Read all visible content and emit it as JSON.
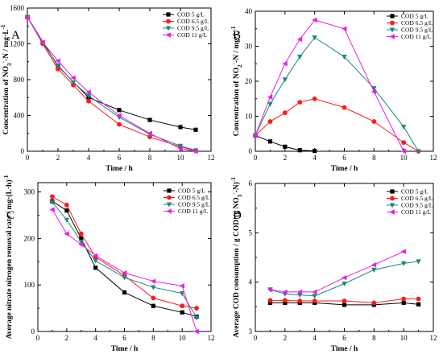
{
  "colors": {
    "COD 5 g/L": "#000000",
    "COD 6.5 g/L": "#ff1a1a",
    "COD 9.5 g/L": "#1a8a7a",
    "COD 11 g/L": "#e81ee8"
  },
  "markers": {
    "COD 5 g/L": "square",
    "COD 6.5 g/L": "circle",
    "COD 9.5 g/L": "triangle-down",
    "COD 11 g/L": "triangle-left"
  },
  "chart_data": [
    {
      "id": "A",
      "type": "line",
      "panel_label": "A",
      "xlabel": "Time / h",
      "ylabel_parts": [
        "Concentration of NO",
        "3",
        "-",
        "-N / mg·L",
        "-1"
      ],
      "xlim": [
        0,
        12
      ],
      "ylim": [
        0,
        1600
      ],
      "xticks": [
        0,
        2,
        4,
        6,
        8,
        10,
        12
      ],
      "yticks": [
        0,
        400,
        800,
        1200,
        1600
      ],
      "legend": "top-right",
      "series": [
        {
          "name": "COD  5 g/L",
          "key": "COD 5 g/L",
          "x": [
            0,
            2,
            4,
            6,
            8,
            10,
            11
          ],
          "y": [
            1500,
            950,
            600,
            460,
            350,
            270,
            240
          ]
        },
        {
          "name": "COD  6.5 g/L",
          "key": "COD 6.5 g/L",
          "x": [
            0,
            1,
            2,
            3,
            4,
            6,
            8,
            10,
            11
          ],
          "y": [
            1500,
            1200,
            920,
            740,
            560,
            300,
            160,
            50,
            5
          ]
        },
        {
          "name": "COD  9.5 g/L",
          "key": "COD 9.5 g/L",
          "x": [
            0,
            1,
            2,
            3,
            4,
            6,
            8,
            10,
            11
          ],
          "y": [
            1500,
            1210,
            960,
            770,
            620,
            380,
            190,
            60,
            10
          ]
        },
        {
          "name": "COD  11 g/L",
          "key": "COD 11 g/L",
          "x": [
            0,
            1,
            2,
            3,
            4,
            6,
            8,
            10,
            11
          ],
          "y": [
            1500,
            1220,
            1010,
            820,
            660,
            400,
            200,
            30,
            0
          ]
        }
      ]
    },
    {
      "id": "B",
      "type": "line",
      "panel_label": "B",
      "xlabel": "Time / h",
      "ylabel_parts": [
        "Concentration of NO",
        "2",
        "-",
        "-N / mg·L",
        "-1"
      ],
      "xlim": [
        0,
        12
      ],
      "ylim": [
        0,
        40
      ],
      "xticks": [
        0,
        2,
        4,
        6,
        8,
        10,
        12
      ],
      "yticks": [
        0,
        10,
        20,
        30,
        40
      ],
      "legend": "top-right",
      "series": [
        {
          "name": "COD  5 g/L",
          "key": "COD 5 g/L",
          "x": [
            0,
            1,
            2,
            3,
            4
          ],
          "y": [
            4.5,
            2.8,
            1.3,
            0.3,
            0.1
          ]
        },
        {
          "name": "COD  6.5 g/L",
          "key": "COD 6.5 g/L",
          "x": [
            0,
            1,
            2,
            3,
            4,
            6,
            8,
            10,
            11
          ],
          "y": [
            4.5,
            8.5,
            11,
            14,
            15,
            12.5,
            8.5,
            2.5,
            0
          ]
        },
        {
          "name": "COD  9.5 g/L",
          "key": "COD 9.5 g/L",
          "x": [
            0,
            1,
            2,
            3,
            4,
            6,
            8,
            10,
            11
          ],
          "y": [
            4.5,
            13.5,
            20.5,
            27,
            32.5,
            27,
            18,
            7,
            0
          ]
        },
        {
          "name": "COD  11 g/L",
          "key": "COD 11 g/L",
          "x": [
            0,
            1,
            2,
            3,
            4,
            6,
            8,
            10
          ],
          "y": [
            4.5,
            15.5,
            25,
            32,
            37.5,
            35,
            17,
            0
          ]
        }
      ]
    },
    {
      "id": "C",
      "type": "line",
      "panel_label": "C",
      "xlabel": "Time / h",
      "ylabel_parts": [
        "Average nitrate nitrogen removal rate / mg·(L·h)",
        "-1"
      ],
      "xlim": [
        0,
        12
      ],
      "ylim": [
        0,
        320
      ],
      "xticks": [
        0,
        2,
        4,
        6,
        8,
        10,
        12
      ],
      "yticks": [
        0,
        100,
        200,
        300
      ],
      "legend": "top-right",
      "series": [
        {
          "name": "COD  5 g/L",
          "key": "COD 5 g/L",
          "x": [
            1,
            2,
            3,
            4,
            6,
            8,
            10,
            11
          ],
          "y": [
            280,
            260,
            200,
            137,
            84,
            55,
            41,
            32
          ]
        },
        {
          "name": "COD  6.5 g/L",
          "key": "COD 6.5 g/L",
          "x": [
            1,
            2,
            3,
            4,
            6,
            8,
            10,
            11
          ],
          "y": [
            290,
            272,
            210,
            160,
            120,
            72,
            55,
            50
          ]
        },
        {
          "name": "COD  9.5 g/L",
          "key": "COD 9.5 g/L",
          "x": [
            1,
            2,
            3,
            4,
            6,
            8,
            10,
            11
          ],
          "y": [
            278,
            240,
            193,
            152,
            116,
            95,
            82,
            30
          ]
        },
        {
          "name": "COD  11 g/L",
          "key": "COD 11 g/L",
          "x": [
            1,
            2,
            3,
            4,
            6,
            8,
            10,
            11
          ],
          "y": [
            262,
            210,
            187,
            163,
            126,
            108,
            98,
            0
          ]
        }
      ]
    },
    {
      "id": "D",
      "type": "line",
      "panel_label": "D",
      "xlabel": "Time / h",
      "ylabel_parts": [
        "Average COD consumption / g COD·(g NO",
        "3",
        "-",
        "-N)",
        "-1"
      ],
      "xlim": [
        0,
        12
      ],
      "ylim": [
        3,
        6
      ],
      "xticks": [
        0,
        2,
        4,
        6,
        8,
        10,
        12
      ],
      "yticks": [
        3,
        4,
        5,
        6
      ],
      "legend": "top-right",
      "series": [
        {
          "name": "COD  5 g/L",
          "key": "COD 5 g/L",
          "x": [
            1,
            2,
            3,
            4,
            6,
            8,
            10,
            11
          ],
          "y": [
            3.58,
            3.58,
            3.58,
            3.58,
            3.54,
            3.54,
            3.58,
            3.55
          ]
        },
        {
          "name": "COD  6.5 g/L",
          "key": "COD 6.5 g/L",
          "x": [
            1,
            2,
            3,
            4,
            6,
            8,
            10,
            11
          ],
          "y": [
            3.63,
            3.63,
            3.62,
            3.62,
            3.62,
            3.58,
            3.66,
            3.66
          ]
        },
        {
          "name": "COD  9.5 g/L",
          "key": "COD 9.5 g/L",
          "x": [
            1,
            2,
            3,
            4,
            6,
            8,
            10,
            11
          ],
          "y": [
            3.85,
            3.76,
            3.74,
            3.72,
            3.97,
            4.25,
            4.38,
            4.42
          ]
        },
        {
          "name": "COD  11 g/L",
          "key": "COD 11 g/L",
          "x": [
            1,
            2,
            3,
            4,
            6,
            8,
            10
          ],
          "y": [
            3.85,
            3.8,
            3.8,
            3.8,
            4.09,
            4.35,
            4.62
          ]
        }
      ]
    }
  ]
}
